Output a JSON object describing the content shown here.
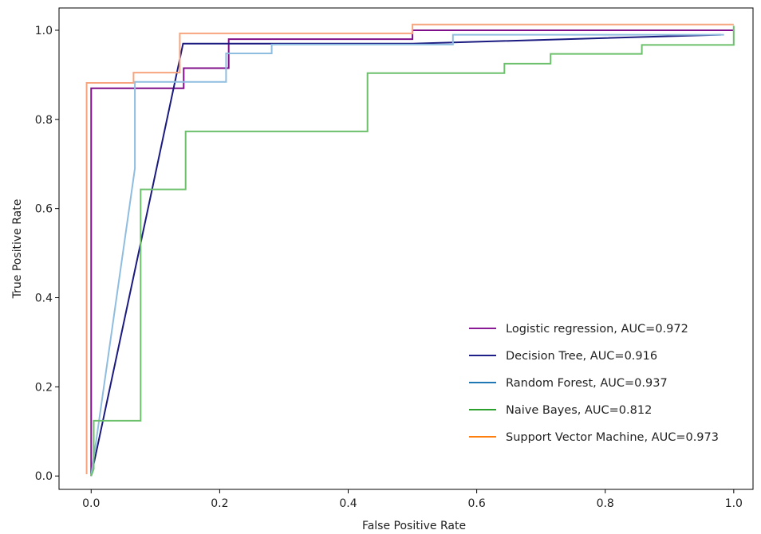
{
  "chart_data": {
    "type": "line",
    "title": "",
    "xlabel": "False Positive Rate",
    "ylabel": "True Positive Rate",
    "xlim": [
      -0.05,
      1.03
    ],
    "ylim": [
      -0.03,
      1.05
    ],
    "xticks": [
      "0.0",
      "0.2",
      "0.4",
      "0.6",
      "0.8",
      "1.0"
    ],
    "yticks": [
      "0.0",
      "0.2",
      "0.4",
      "0.6",
      "0.8",
      "1.0"
    ],
    "grid": false,
    "legend_position": "lower-right",
    "series": [
      {
        "name": "Logistic regression, AUC=0.972",
        "line_color": "#80108a",
        "legend_color": "#8b1a96",
        "points": [
          [
            0,
            0
          ],
          [
            0,
            0.87
          ],
          [
            0.144,
            0.87
          ],
          [
            0.144,
            0.915
          ],
          [
            0.214,
            0.915
          ],
          [
            0.214,
            0.98
          ],
          [
            0.5,
            0.98
          ],
          [
            0.5,
            1.0
          ],
          [
            1.0,
            1.0
          ]
        ]
      },
      {
        "name": "Decision Tree, AUC=0.916",
        "line_color": "#1a1a80",
        "legend_color": "#1f1f8a",
        "points": [
          [
            0,
            0
          ],
          [
            0.143,
            0.97
          ],
          [
            0.5,
            0.97
          ],
          [
            0.98,
            0.99
          ]
        ]
      },
      {
        "name": "Random Forest, AUC=0.937",
        "line_color": "#8fbde0",
        "legend_color": "#1f77b4",
        "points": [
          [
            0,
            0
          ],
          [
            0.068,
            0.69
          ],
          [
            0.068,
            0.884
          ],
          [
            0.21,
            0.884
          ],
          [
            0.21,
            0.948
          ],
          [
            0.281,
            0.948
          ],
          [
            0.281,
            0.968
          ],
          [
            0.563,
            0.968
          ],
          [
            0.563,
            0.99
          ],
          [
            0.985,
            0.99
          ]
        ]
      },
      {
        "name": "Naive Bayes, AUC=0.812",
        "line_color": "#6cc06c",
        "legend_color": "#2ca02c",
        "points": [
          [
            0,
            0
          ],
          [
            0.004,
            0.016
          ],
          [
            0.004,
            0.124
          ],
          [
            0.077,
            0.124
          ],
          [
            0.077,
            0.643
          ],
          [
            0.147,
            0.643
          ],
          [
            0.147,
            0.773
          ],
          [
            0.43,
            0.773
          ],
          [
            0.43,
            0.904
          ],
          [
            0.643,
            0.904
          ],
          [
            0.643,
            0.925
          ],
          [
            0.715,
            0.925
          ],
          [
            0.715,
            0.947
          ],
          [
            0.857,
            0.947
          ],
          [
            0.857,
            0.967
          ],
          [
            1.0,
            0.967
          ],
          [
            1.0,
            1.01
          ]
        ]
      },
      {
        "name": "Support Vector Machine, AUC=0.973",
        "line_color": "#f7a57e",
        "legend_color": "#ff7f0e",
        "points": [
          [
            -0.007,
            0.004
          ],
          [
            -0.007,
            0.882
          ],
          [
            0.066,
            0.882
          ],
          [
            0.066,
            0.905
          ],
          [
            0.138,
            0.905
          ],
          [
            0.138,
            0.993
          ],
          [
            0.5,
            0.993
          ],
          [
            0.5,
            1.013
          ],
          [
            1.0,
            1.013
          ]
        ]
      }
    ]
  }
}
